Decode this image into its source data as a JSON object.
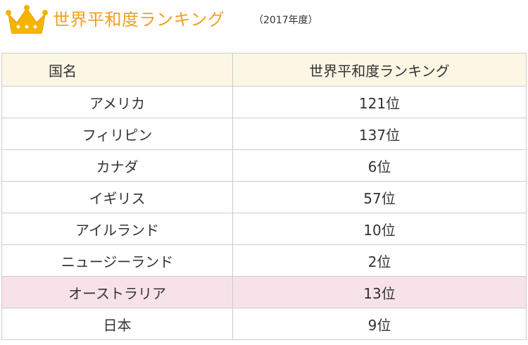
{
  "header": {
    "title": "世界平和度ランキング",
    "year": "（2017年度）",
    "accent_color": "#f0a020",
    "icon": "crown-icon"
  },
  "table": {
    "columns": [
      "国名",
      "世界平和度ランキング"
    ],
    "header_bg": "#fcf6e4",
    "highlight_bg": "#f8e2ea",
    "rows": [
      {
        "country": "アメリカ",
        "rank": "121位",
        "highlight": false
      },
      {
        "country": "フィリピン",
        "rank": "137位",
        "highlight": false
      },
      {
        "country": "カナダ",
        "rank": "6位",
        "highlight": false
      },
      {
        "country": "イギリス",
        "rank": "57位",
        "highlight": false
      },
      {
        "country": "アイルランド",
        "rank": "10位",
        "highlight": false
      },
      {
        "country": "ニュージーランド",
        "rank": "2位",
        "highlight": false
      },
      {
        "country": "オーストラリア",
        "rank": "13位",
        "highlight": true
      },
      {
        "country": "日本",
        "rank": "9位",
        "highlight": false
      }
    ]
  }
}
